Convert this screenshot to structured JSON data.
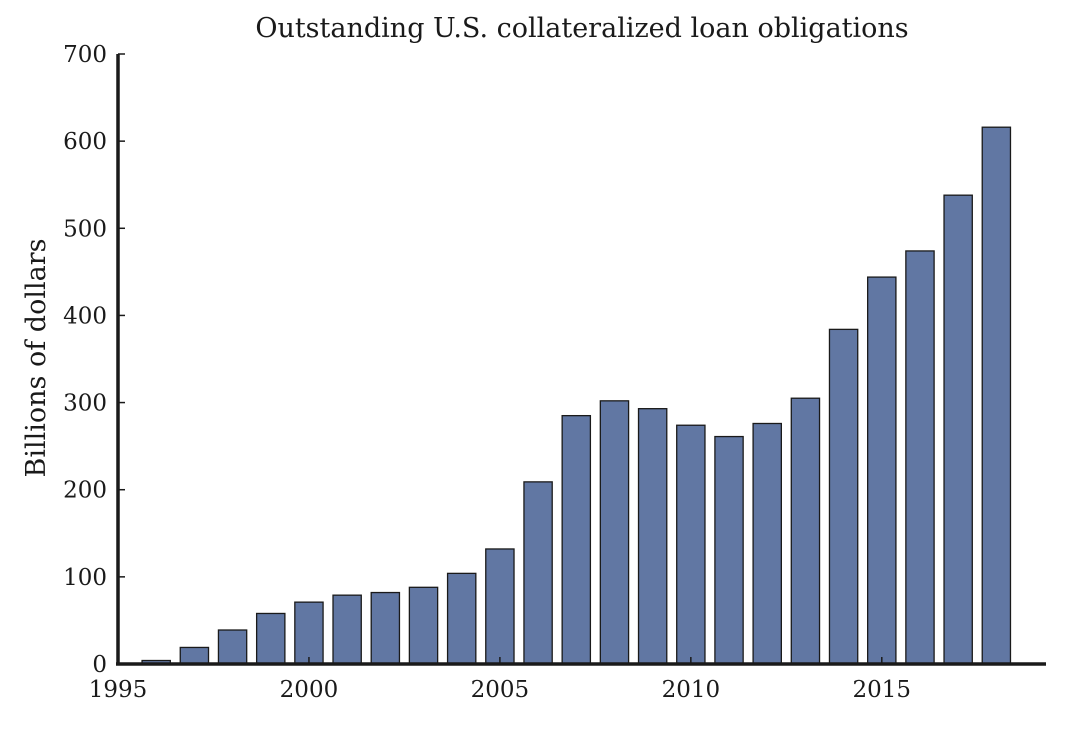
{
  "chart_data": {
    "type": "bar",
    "title": "Outstanding U.S. collateralized loan obligations",
    "xlabel": "",
    "ylabel": "Billions of dollars",
    "x": [
      1996,
      1997,
      1998,
      1999,
      2000,
      2001,
      2002,
      2003,
      2004,
      2005,
      2006,
      2007,
      2008,
      2009,
      2010,
      2011,
      2012,
      2013,
      2014,
      2015,
      2016,
      2017,
      2018
    ],
    "values": [
      4,
      19,
      39,
      58,
      71,
      79,
      82,
      88,
      104,
      132,
      209,
      285,
      302,
      293,
      274,
      261,
      276,
      305,
      384,
      444,
      474,
      538,
      616
    ],
    "xlim": [
      1995,
      2019.3
    ],
    "ylim": [
      0,
      700
    ],
    "xticks": [
      "1995",
      "2000",
      "2005",
      "2010",
      "2015"
    ],
    "yticks": [
      "0",
      "100",
      "200",
      "300",
      "400",
      "500",
      "600",
      "700"
    ],
    "grid": false,
    "bar_color": "#6177a3",
    "bar_edge_color": "#1a1a1a",
    "axis_color": "#1a1a1a"
  }
}
